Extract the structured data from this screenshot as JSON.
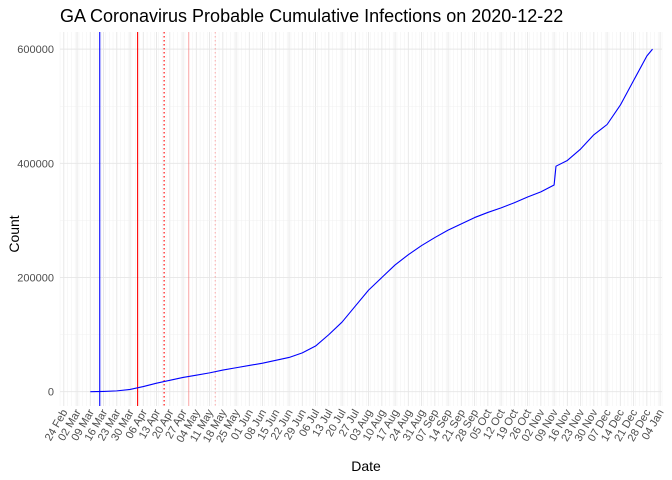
{
  "chart_data": {
    "type": "line",
    "title": "GA Coronavirus Probable Cumulative Infections on 2020-12-22",
    "xlabel": "Date",
    "ylabel": "Count",
    "xlim": [
      "2020-02-22",
      "2021-01-05"
    ],
    "ylim": [
      -25000,
      630000
    ],
    "y_ticks": [
      0,
      200000,
      400000,
      600000
    ],
    "y_tick_labels": [
      "0",
      "200000",
      "400000",
      "600000"
    ],
    "x_ticks": [
      "2020-02-24",
      "2020-03-02",
      "2020-03-09",
      "2020-03-16",
      "2020-03-23",
      "2020-03-30",
      "2020-04-06",
      "2020-04-13",
      "2020-04-20",
      "2020-04-27",
      "2020-05-04",
      "2020-05-11",
      "2020-05-18",
      "2020-05-25",
      "2020-06-01",
      "2020-06-08",
      "2020-06-15",
      "2020-06-22",
      "2020-06-29",
      "2020-07-06",
      "2020-07-13",
      "2020-07-20",
      "2020-07-27",
      "2020-08-03",
      "2020-08-10",
      "2020-08-17",
      "2020-08-24",
      "2020-08-31",
      "2020-09-07",
      "2020-09-14",
      "2020-09-21",
      "2020-09-28",
      "2020-10-05",
      "2020-10-12",
      "2020-10-19",
      "2020-10-26",
      "2020-11-02",
      "2020-11-09",
      "2020-11-16",
      "2020-11-23",
      "2020-11-30",
      "2020-12-07",
      "2020-12-14",
      "2020-12-21",
      "2020-12-28",
      "2021-01-04"
    ],
    "x_tick_labels": [
      "24 Feb",
      "02 Mar",
      "09 Mar",
      "16 Mar",
      "23 Mar",
      "30 Mar",
      "06 Apr",
      "13 Apr",
      "20 Apr",
      "27 Apr",
      "04 May",
      "11 May",
      "18 May",
      "25 May",
      "01 Jun",
      "08 Jun",
      "15 Jun",
      "22 Jun",
      "29 Jun",
      "06 Jul",
      "13 Jul",
      "20 Jul",
      "27 Jul",
      "03 Aug",
      "10 Aug",
      "17 Aug",
      "24 Aug",
      "31 Aug",
      "07 Sep",
      "14 Sep",
      "21 Sep",
      "28 Sep",
      "05 Oct",
      "12 Oct",
      "19 Oct",
      "26 Oct",
      "02 Nov",
      "09 Nov",
      "16 Nov",
      "23 Nov",
      "30 Nov",
      "07 Dec",
      "14 Dec",
      "21 Dec",
      "28 Dec",
      "04 Jan"
    ],
    "grid": true,
    "series": [
      {
        "color": "#0000ff",
        "points": [
          [
            "2020-03-09",
            0
          ],
          [
            "2020-03-16",
            500
          ],
          [
            "2020-03-23",
            1500
          ],
          [
            "2020-03-30",
            4000
          ],
          [
            "2020-04-06",
            9000
          ],
          [
            "2020-04-13",
            15000
          ],
          [
            "2020-04-20",
            20000
          ],
          [
            "2020-04-27",
            25000
          ],
          [
            "2020-05-04",
            29000
          ],
          [
            "2020-05-11",
            33000
          ],
          [
            "2020-05-18",
            38000
          ],
          [
            "2020-05-25",
            42000
          ],
          [
            "2020-06-01",
            46000
          ],
          [
            "2020-06-08",
            50000
          ],
          [
            "2020-06-15",
            55000
          ],
          [
            "2020-06-22",
            60000
          ],
          [
            "2020-06-29",
            68000
          ],
          [
            "2020-07-06",
            80000
          ],
          [
            "2020-07-13",
            100000
          ],
          [
            "2020-07-20",
            122000
          ],
          [
            "2020-07-27",
            150000
          ],
          [
            "2020-08-03",
            178000
          ],
          [
            "2020-08-10",
            200000
          ],
          [
            "2020-08-17",
            222000
          ],
          [
            "2020-08-24",
            240000
          ],
          [
            "2020-08-31",
            256000
          ],
          [
            "2020-09-07",
            270000
          ],
          [
            "2020-09-14",
            283000
          ],
          [
            "2020-09-21",
            294000
          ],
          [
            "2020-09-28",
            305000
          ],
          [
            "2020-10-05",
            314000
          ],
          [
            "2020-10-12",
            322000
          ],
          [
            "2020-10-19",
            331000
          ],
          [
            "2020-10-26",
            341000
          ],
          [
            "2020-11-02",
            350000
          ],
          [
            "2020-11-09",
            362000
          ],
          [
            "2020-11-10",
            395000
          ],
          [
            "2020-11-16",
            405000
          ],
          [
            "2020-11-23",
            425000
          ],
          [
            "2020-11-30",
            450000
          ],
          [
            "2020-12-07",
            468000
          ],
          [
            "2020-12-14",
            502000
          ],
          [
            "2020-12-21",
            545000
          ],
          [
            "2020-12-28",
            588000
          ],
          [
            "2020-12-31",
            600000
          ]
        ]
      }
    ],
    "vlines": [
      {
        "date": "2020-03-14",
        "color": "#0000ff",
        "style": "solid"
      },
      {
        "date": "2020-04-03",
        "color": "#ff0000",
        "style": "solid"
      },
      {
        "date": "2020-04-17",
        "color": "#ff0000",
        "style": "dotted"
      },
      {
        "date": "2020-04-30",
        "color": "#ff0000",
        "style": "solid",
        "opacity": 0.3
      },
      {
        "date": "2020-05-14",
        "color": "#ff0000",
        "style": "dotted",
        "opacity": 0.3
      }
    ]
  }
}
